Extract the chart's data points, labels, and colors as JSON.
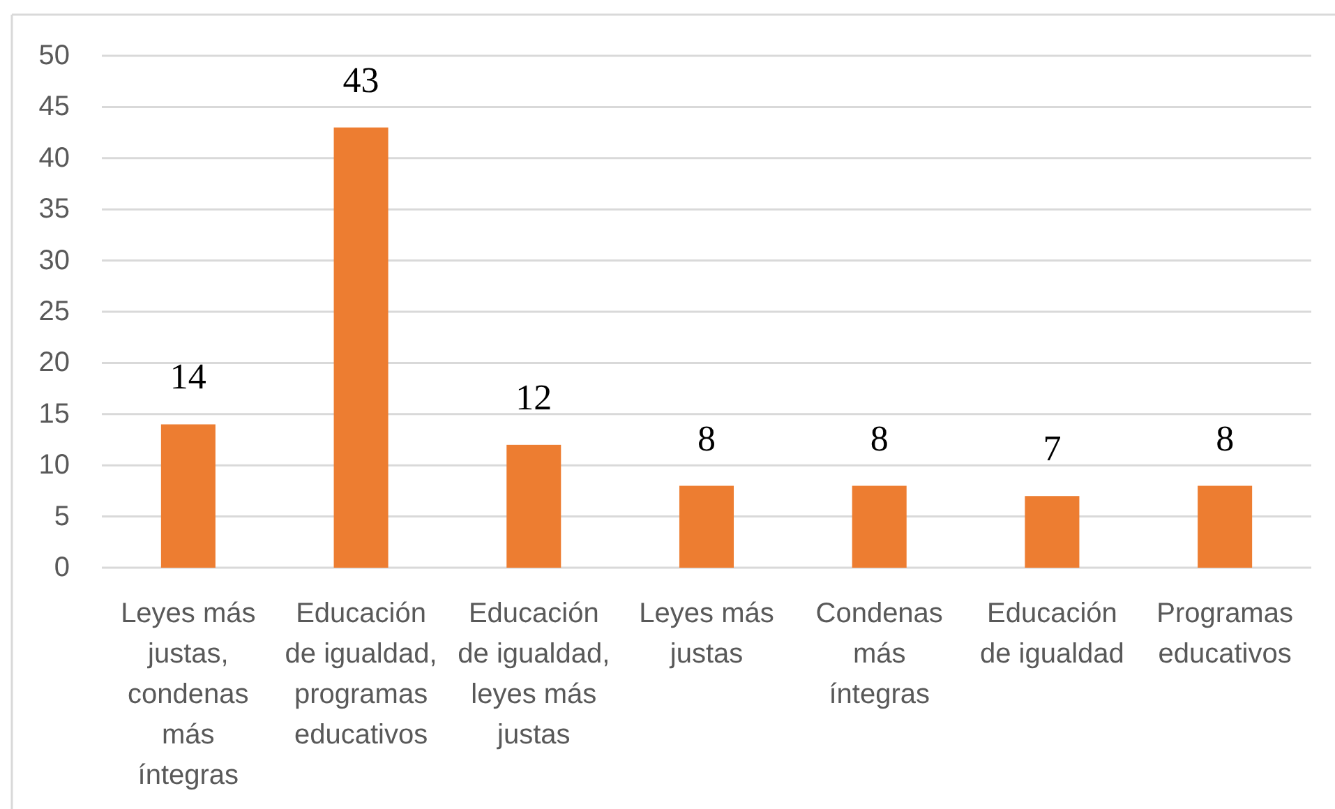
{
  "chart_data": {
    "type": "bar",
    "categories": [
      "Leyes más justas, condenas más íntegras",
      "Educación de igualdad, programas educativos",
      "Educación de igualdad, leyes más justas",
      "Leyes más justas",
      "Condenas más íntegras",
      "Educación de igualdad",
      "Programas educativos"
    ],
    "values": [
      14,
      43,
      12,
      8,
      8,
      7,
      8
    ],
    "color": "#ed7d31",
    "ylim": [
      0,
      50
    ],
    "yticks": [
      0,
      5,
      10,
      15,
      20,
      25,
      30,
      35,
      40,
      45,
      50
    ],
    "grid": "y",
    "data_labels": true
  }
}
